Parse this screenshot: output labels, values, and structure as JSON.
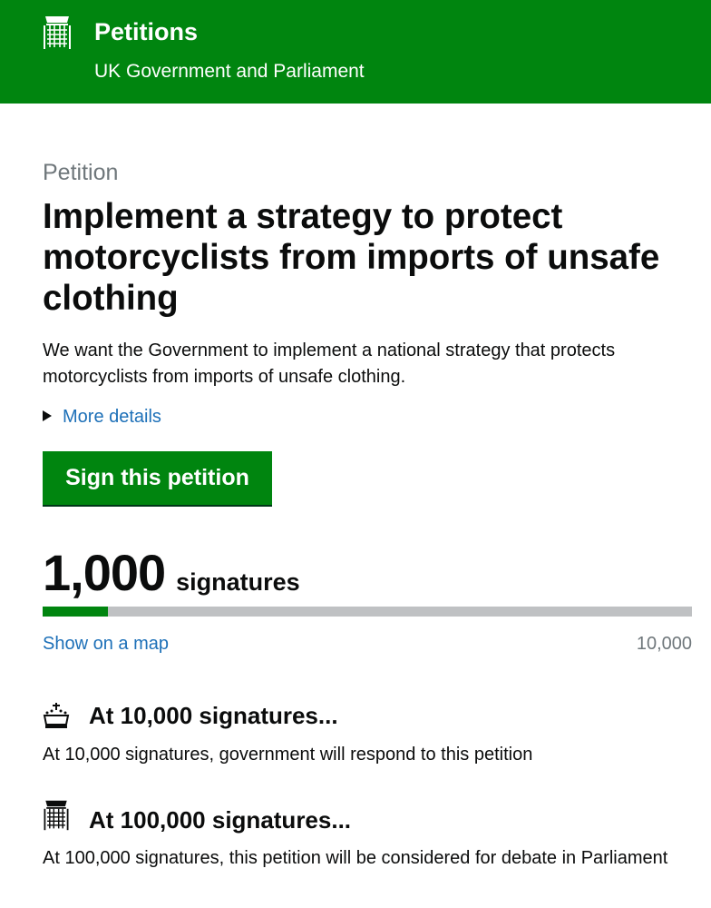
{
  "header": {
    "title": "Petitions",
    "subtitle": "UK Government and Parliament",
    "logo_icon": "portcullis-icon"
  },
  "petition": {
    "caption": "Petition",
    "title": "Implement a strategy to protect motorcyclists from imports of unsafe clothing",
    "description": "We want the Government to implement a national strategy that protects motorcyclists from imports of unsafe clothing.",
    "more_details": "More details",
    "sign_button": "Sign this petition"
  },
  "signatures": {
    "count": "1,000",
    "label": "signatures",
    "progress_percent": 10,
    "map_link": "Show on a map",
    "target": "10,000"
  },
  "milestones": [
    {
      "icon": "crown-icon",
      "heading": "At 10,000 signatures...",
      "text": "At 10,000 signatures, government will respond to this petition"
    },
    {
      "icon": "portcullis-icon",
      "heading": "At 100,000 signatures...",
      "text": "At 100,000 signatures, this petition will be considered for debate in Parliament"
    }
  ],
  "colors": {
    "brand_green": "#00850f",
    "link_blue": "#1d70b8",
    "progress_track": "#bfc1c3"
  }
}
